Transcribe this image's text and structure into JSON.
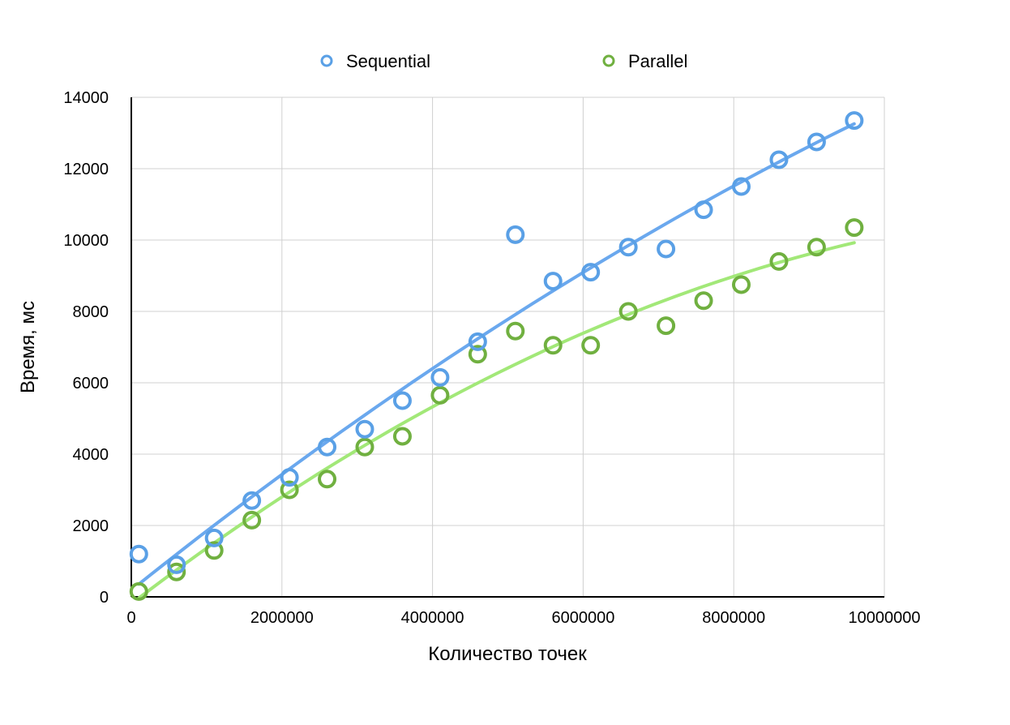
{
  "chart_data": {
    "type": "scatter",
    "title": "",
    "xlabel": "Количество точек",
    "ylabel": "Время, мс",
    "xlim": [
      0,
      10000000
    ],
    "ylim": [
      0,
      14000
    ],
    "x_ticks": [
      "0",
      "2000000",
      "4000000",
      "6000000",
      "8000000",
      "10000000"
    ],
    "y_ticks": [
      "0",
      "2000",
      "4000",
      "6000",
      "8000",
      "10000",
      "12000",
      "14000"
    ],
    "grid": true,
    "legend_position": "top",
    "series": [
      {
        "name": "Sequential",
        "color": "#5aa0e6",
        "trendline_color": "#6aa8ee",
        "trendline": true,
        "x": [
          100000,
          600000,
          1100000,
          1600000,
          2100000,
          2600000,
          3100000,
          3600000,
          4100000,
          4600000,
          5100000,
          5600000,
          6100000,
          6600000,
          7100000,
          7600000,
          8100000,
          8600000,
          9100000,
          9600000
        ],
        "y": [
          1200,
          900,
          1650,
          2700,
          3350,
          4200,
          4700,
          5500,
          6150,
          7150,
          10150,
          8850,
          9100,
          9800,
          9750,
          10850,
          11500,
          12250,
          12750,
          13350
        ]
      },
      {
        "name": "Parallel",
        "color": "#70b040",
        "trendline_color": "#a2e878",
        "trendline": true,
        "x": [
          100000,
          600000,
          1100000,
          1600000,
          2100000,
          2600000,
          3100000,
          3600000,
          4100000,
          4600000,
          5100000,
          5600000,
          6100000,
          6600000,
          7100000,
          7600000,
          8100000,
          8600000,
          9100000,
          9600000
        ],
        "y": [
          150,
          700,
          1300,
          2150,
          3000,
          3300,
          4200,
          4500,
          5650,
          6800,
          7450,
          7050,
          7050,
          8000,
          7600,
          8300,
          8750,
          9400,
          9800,
          10350
        ]
      }
    ]
  }
}
